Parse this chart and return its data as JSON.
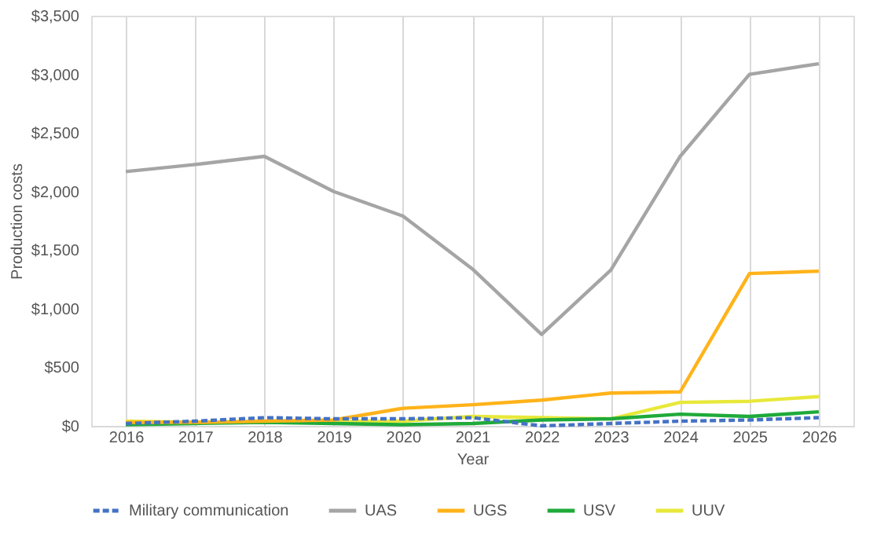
{
  "chart_data": {
    "type": "line",
    "xlabel": "Year",
    "ylabel": "Production costs",
    "categories": [
      "2016",
      "2017",
      "2018",
      "2019",
      "2020",
      "2021",
      "2022",
      "2023",
      "2024",
      "2025",
      "2026"
    ],
    "ylim": [
      0,
      3500
    ],
    "yticks": [
      {
        "value": 0,
        "label": "$0"
      },
      {
        "value": 500,
        "label": "$500"
      },
      {
        "value": 1000,
        "label": "$1,000"
      },
      {
        "value": 1500,
        "label": "$1,500"
      },
      {
        "value": 2000,
        "label": "$2,000"
      },
      {
        "value": 2500,
        "label": "$2,500"
      },
      {
        "value": 3000,
        "label": "$3,000"
      },
      {
        "value": 3500,
        "label": "$3,500"
      }
    ],
    "grid": "x",
    "legend": "bottom",
    "marker": "none",
    "series": [
      {
        "name": "Military communication",
        "color": "#4472c4",
        "line_style": "dashed",
        "values": [
          20,
          40,
          70,
          60,
          60,
          70,
          0,
          20,
          40,
          50,
          70
        ]
      },
      {
        "name": "UAS",
        "color": "#a5a5a5",
        "values": [
          2170,
          2230,
          2300,
          2000,
          1790,
          1340,
          780,
          1330,
          2300,
          3000,
          3090
        ]
      },
      {
        "name": "UGS",
        "color": "#ffb31a",
        "values": [
          30,
          30,
          40,
          50,
          150,
          180,
          220,
          280,
          290,
          1300,
          1320
        ]
      },
      {
        "name": "USV",
        "color": "#1faa3a",
        "values": [
          10,
          20,
          30,
          20,
          10,
          20,
          50,
          60,
          100,
          80,
          120
        ]
      },
      {
        "name": "UUV",
        "color": "#e8e83a",
        "values": [
          40,
          30,
          30,
          40,
          40,
          80,
          70,
          60,
          200,
          210,
          250
        ]
      }
    ]
  }
}
